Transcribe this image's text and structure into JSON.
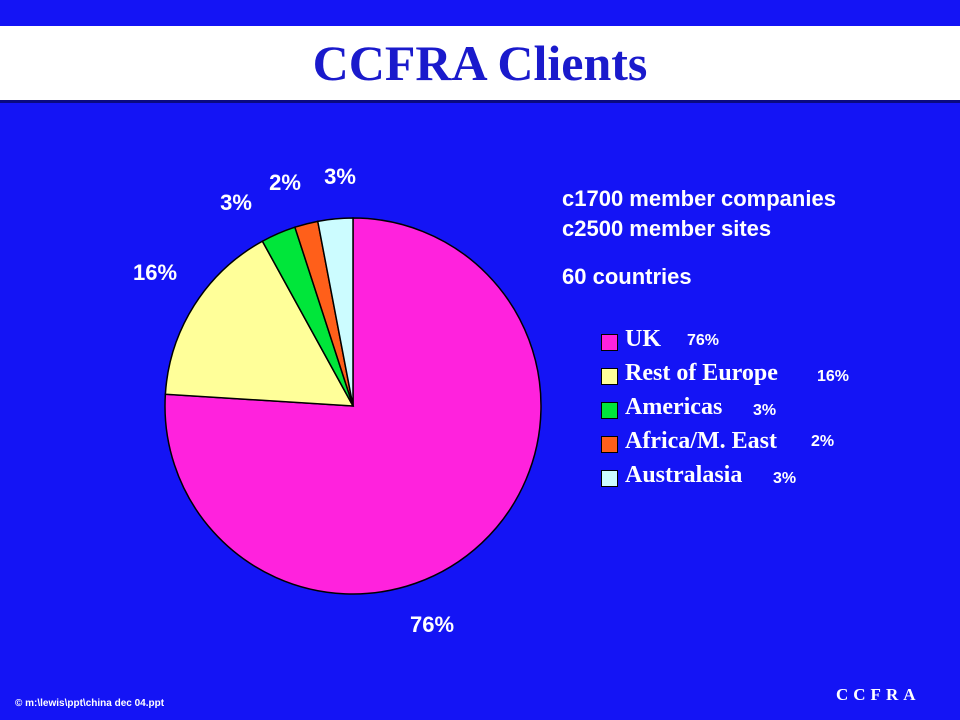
{
  "title": "CCFRA Clients",
  "info": {
    "line1": "c1700 member companies",
    "line2": "c2500 member sites",
    "line3": "60 countries"
  },
  "footer": {
    "left": "© m:\\lewis\\ppt\\china dec 04.ppt",
    "right": "CCFRA"
  },
  "chart_data": {
    "type": "pie",
    "title": "CCFRA Clients",
    "categories": [
      "UK",
      "Rest of Europe",
      "Americas",
      "Africa/M. East",
      "Australasia"
    ],
    "values": [
      76,
      16,
      3,
      2,
      3
    ],
    "labels": [
      "76%",
      "16%",
      "3%",
      "2%",
      "3%"
    ],
    "colors": [
      "#ff22dd",
      "#ffff99",
      "#00e63a",
      "#ff5f1a",
      "#ccfcff"
    ],
    "legend_labels": [
      "UK",
      "Rest of Europe",
      "Americas",
      "Africa/M. East",
      "Australasia"
    ],
    "legend_values": [
      "76%",
      "16%",
      "3%",
      "2%",
      "3%"
    ],
    "legend": "right"
  }
}
